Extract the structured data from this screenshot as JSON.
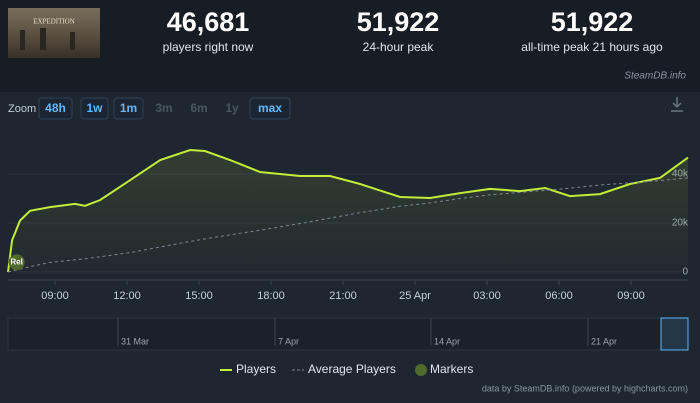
{
  "stats": [
    {
      "value": "46,681",
      "label": "players right now"
    },
    {
      "value": "51,922",
      "label": "24-hour peak"
    },
    {
      "value": "51,922",
      "label": "all-time peak 21 hours ago"
    }
  ],
  "brand": "SteamDB.info",
  "zoom": {
    "label": "Zoom",
    "buttons": [
      "48h",
      "1w",
      "1m",
      "3m",
      "6m",
      "1y",
      "max"
    ],
    "enabled": [
      true,
      true,
      true,
      false,
      false,
      false,
      true
    ]
  },
  "chart_data": {
    "type": "line",
    "x": [
      7.04,
      7.21,
      7.54,
      7.96,
      8.79,
      9.83,
      10.25,
      10.88,
      12.13,
      13.38,
      14.63,
      15.25,
      16.29,
      17.54,
      19.21,
      20.46,
      21.71,
      23.38,
      24.63,
      25.88,
      27.13,
      28.38,
      29.42,
      30.46,
      31.71,
      32.96,
      34.21,
      35.375
    ],
    "series": [
      {
        "name": "Players",
        "color": "#c4ec3a",
        "values": [
          0,
          13000,
          21000,
          25000,
          26500,
          27800,
          27000,
          29400,
          37500,
          45700,
          49800,
          49400,
          45700,
          40800,
          39200,
          39200,
          35900,
          30600,
          30200,
          32200,
          33900,
          33000,
          34300,
          31000,
          31800,
          35900,
          38400,
          46681
        ]
      },
      {
        "name": "Average Players",
        "color": "#7d8791",
        "dashed": true,
        "values": [
          0,
          400,
          1200,
          2200,
          3900,
          5000,
          5400,
          6200,
          7900,
          10200,
          12500,
          13500,
          15200,
          17000,
          19800,
          22000,
          24200,
          26800,
          28200,
          30000,
          31500,
          32500,
          33300,
          34200,
          35500,
          36400,
          37300,
          38400
        ]
      }
    ],
    "markers": [
      {
        "label": "Rel",
        "x": 7.4,
        "y": 4000
      }
    ],
    "legend_markers": "Markers",
    "xlim": [
      7.04,
      35.375
    ],
    "xticks": [
      {
        "value": 9,
        "label": "09:00"
      },
      {
        "value": 12,
        "label": "12:00"
      },
      {
        "value": 15,
        "label": "15:00"
      },
      {
        "value": 18,
        "label": "18:00"
      },
      {
        "value": 21,
        "label": "21:00"
      },
      {
        "value": 24,
        "label": "25 Apr"
      },
      {
        "value": 27,
        "label": "03:00"
      },
      {
        "value": 30,
        "label": "06:00"
      },
      {
        "value": 33,
        "label": "09:00"
      }
    ],
    "ylim": [
      0,
      60000
    ],
    "yticks": [
      {
        "value": 0,
        "label": "0"
      },
      {
        "value": 20000,
        "label": "20k"
      },
      {
        "value": 40000,
        "label": "40k"
      }
    ],
    "grid": true,
    "navigator_labels": [
      "31 Mar",
      "7 Apr",
      "14 Apr",
      "21 Apr"
    ],
    "credits": "data by SteamDB.info (powered by highcharts.com)"
  }
}
